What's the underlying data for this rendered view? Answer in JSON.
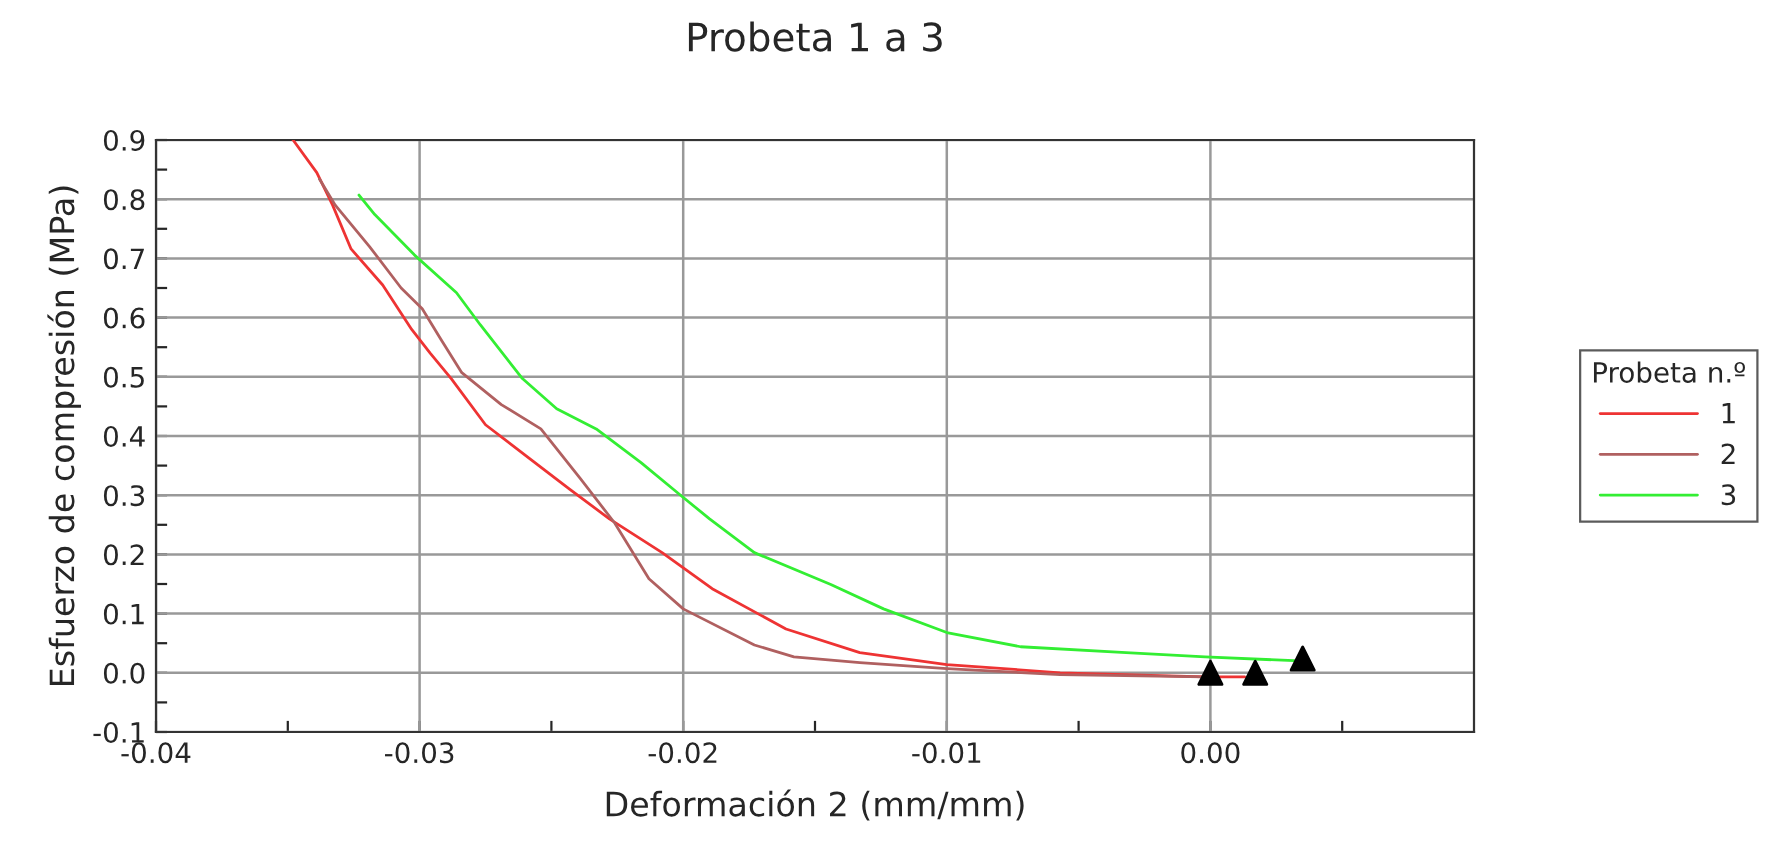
{
  "chart_data": {
    "type": "line",
    "title": "Probeta 1 a 3",
    "xlabel": "Deformación 2 (mm/mm)",
    "ylabel": "Esfuerzo de compresión (MPa)",
    "legend_title": "Probeta n.º",
    "legend": "right",
    "grid": true,
    "line_style": "solid",
    "marker": "none",
    "xlim": [
      -0.04,
      0.01
    ],
    "ylim": [
      -0.1,
      0.9
    ],
    "xticks": [
      {
        "value": -0.04,
        "label": "-0.04"
      },
      {
        "value": -0.035,
        "label": null
      },
      {
        "value": -0.03,
        "label": "-0.03"
      },
      {
        "value": -0.025,
        "label": null
      },
      {
        "value": -0.02,
        "label": "-0.02"
      },
      {
        "value": -0.015,
        "label": null
      },
      {
        "value": -0.01,
        "label": "-0.01"
      },
      {
        "value": -0.005,
        "label": null
      },
      {
        "value": 0,
        "label": "0.00"
      },
      {
        "value": 0.005,
        "label": null
      }
    ],
    "yticks": [
      -0.1,
      {
        "value": -0.05,
        "label": null
      },
      {
        "value": 0,
        "label": "0.0"
      },
      {
        "value": 0.05,
        "label": null
      },
      0.1,
      {
        "value": 0.15,
        "label": null
      },
      0.2,
      {
        "value": 0.25,
        "label": null
      },
      0.3,
      {
        "value": 0.35,
        "label": null
      },
      0.4,
      {
        "value": 0.45,
        "label": null
      },
      0.5,
      {
        "value": 0.55,
        "label": null
      },
      0.6,
      {
        "value": 0.65,
        "label": null
      },
      0.7,
      {
        "value": 0.75,
        "label": null
      },
      0.8,
      {
        "value": 0.85,
        "label": null
      },
      0.9
    ],
    "series": [
      {
        "name": "1",
        "color": "#ee3333",
        "x": [
          -0.0348,
          -0.0339,
          -0.0333,
          -0.0326,
          -0.0314,
          -0.0303,
          -0.0296,
          -0.0288,
          -0.0275,
          -0.0258,
          -0.0243,
          -0.0228,
          -0.0208,
          -0.0189,
          -0.0161,
          -0.0133,
          -0.01,
          -0.0057,
          -0.0002,
          0.0013
        ],
        "values": [
          0.9,
          0.845,
          0.79,
          0.716,
          0.655,
          0.58,
          0.54,
          0.497,
          0.419,
          0.361,
          0.31,
          0.26,
          0.203,
          0.142,
          0.074,
          0.034,
          0.014,
          0.0,
          -0.007,
          -0.007
        ]
      },
      {
        "name": "2",
        "color": "#b06060",
        "x": [
          -0.0338,
          -0.0332,
          -0.0319,
          -0.0307,
          -0.0299,
          -0.0292,
          -0.0284,
          -0.0269,
          -0.0254,
          -0.0239,
          -0.0226,
          -0.0213,
          -0.02,
          -0.0173,
          -0.0158,
          -0.0133,
          -0.01,
          -0.0057,
          -0.0002
        ],
        "values": [
          0.834,
          0.79,
          0.72,
          0.65,
          0.615,
          0.564,
          0.507,
          0.453,
          0.412,
          0.328,
          0.253,
          0.159,
          0.108,
          0.047,
          0.027,
          0.017,
          0.007,
          -0.003,
          -0.007
        ]
      },
      {
        "name": "3",
        "color": "#33ee33",
        "x": [
          -0.0323,
          -0.0317,
          -0.0302,
          -0.0286,
          -0.0277,
          -0.0261,
          -0.0248,
          -0.0233,
          -0.0216,
          -0.0201,
          -0.019,
          -0.0173,
          -0.0144,
          -0.0124,
          -0.01,
          -0.0072,
          -0.0032,
          -0.0002,
          0.0034
        ],
        "values": [
          0.807,
          0.774,
          0.706,
          0.642,
          0.588,
          0.497,
          0.446,
          0.412,
          0.355,
          0.3,
          0.26,
          0.203,
          0.149,
          0.108,
          0.068,
          0.044,
          0.034,
          0.027,
          0.02
        ]
      },
      {
        "type": "scatter",
        "marker": "triangle",
        "color": "#000000",
        "x": [
          0.0,
          0.0017,
          0.0035
        ],
        "values": [
          0.0,
          0.0,
          0.024
        ]
      }
    ]
  }
}
